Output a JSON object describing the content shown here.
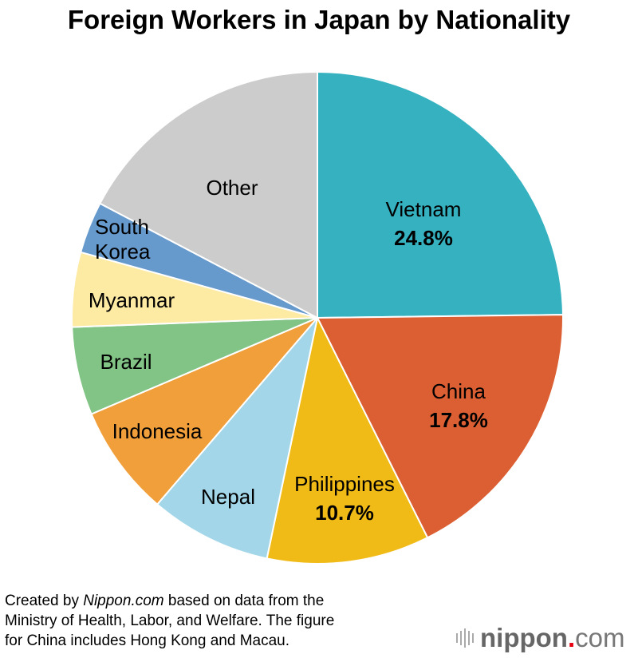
{
  "chart_data": {
    "type": "pie",
    "title": "Foreign Workers in Japan by Nationality",
    "unit": "%",
    "start": "top, clockwise",
    "slices": [
      {
        "label": "Vietnam",
        "value": 24.8,
        "value_label": "24.8%",
        "color": "#35b1c0"
      },
      {
        "label": "China",
        "value": 17.8,
        "value_label": "17.8%",
        "color": "#db5f33"
      },
      {
        "label": "Philippines",
        "value": 10.7,
        "value_label": "10.7%",
        "color": "#f1bb17"
      },
      {
        "label": "Nepal",
        "value": 8.0,
        "color": "#a2d6e8"
      },
      {
        "label": "Indonesia",
        "value": 7.3,
        "color": "#f19f3a"
      },
      {
        "label": "Brazil",
        "value": 5.8,
        "color": "#82c485"
      },
      {
        "label": "Myanmar",
        "value": 4.9,
        "color": "#fdeaa3"
      },
      {
        "label": "South Korea",
        "label_lines": [
          "South",
          "Korea"
        ],
        "value": 3.4,
        "color": "#6699cc"
      },
      {
        "label": "Other",
        "value": 17.3,
        "color": "#cccccc"
      }
    ]
  },
  "note": {
    "prefix": "Created by ",
    "source": "Nippon.com",
    "rest1": " based on data from the",
    "line2": "Ministry of Health, Labor, and Welfare. The figure",
    "line3": "for China includes Hong Kong and Macau."
  },
  "logo": {
    "name": "nippon",
    "dot": ".",
    "tld": "com"
  }
}
